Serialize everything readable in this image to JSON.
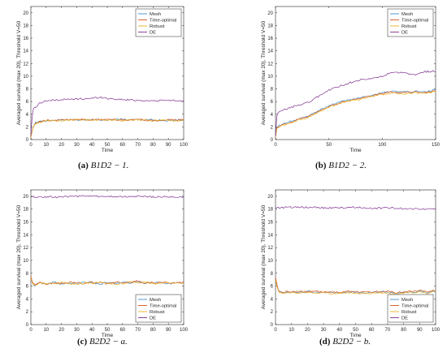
{
  "chart_data": [
    {
      "type": "line",
      "caption": {
        "letter": "(a)",
        "math": "B1D2 − 1."
      },
      "xlabel": "Time",
      "ylabel": "Averaged survival (max 20), Threshold V=50",
      "xlim": [
        0,
        100
      ],
      "ylim": [
        0,
        21
      ],
      "xticks": [
        0,
        10,
        20,
        30,
        40,
        50,
        60,
        70,
        80,
        90,
        100
      ],
      "yticks": [
        0,
        2,
        4,
        6,
        8,
        10,
        12,
        14,
        16,
        18,
        20
      ],
      "legend_position": "top-right",
      "series": [
        {
          "name": "Mesh",
          "color": "#3b8fd0",
          "x": [
            0,
            1,
            2,
            3,
            5,
            8,
            10,
            15,
            20,
            30,
            40,
            50,
            60,
            70,
            80,
            90,
            100
          ],
          "y": [
            0.3,
            1.6,
            2.4,
            2.7,
            2.8,
            2.9,
            3.0,
            3.0,
            3.1,
            3.1,
            3.2,
            3.1,
            3.2,
            3.1,
            3.1,
            3.0,
            3.1
          ]
        },
        {
          "name": "Time-optimal",
          "color": "#d95319",
          "x": [
            0,
            1,
            2,
            3,
            5,
            8,
            10,
            15,
            20,
            30,
            40,
            50,
            60,
            70,
            80,
            90,
            100
          ],
          "y": [
            0.3,
            1.5,
            2.3,
            2.6,
            2.8,
            2.9,
            3.0,
            3.0,
            3.1,
            3.2,
            3.1,
            3.2,
            3.1,
            3.2,
            3.0,
            3.1,
            3.1
          ]
        },
        {
          "name": "Robust",
          "color": "#edb120",
          "x": [
            0,
            1,
            2,
            3,
            5,
            8,
            10,
            15,
            20,
            30,
            40,
            50,
            60,
            70,
            80,
            90,
            100
          ],
          "y": [
            0.3,
            1.5,
            2.2,
            2.5,
            2.7,
            2.8,
            2.9,
            3.0,
            3.0,
            3.1,
            3.1,
            3.1,
            3.0,
            3.1,
            3.0,
            3.0,
            3.0
          ]
        },
        {
          "name": "DE",
          "color": "#7e2f8e",
          "x": [
            0,
            1,
            2,
            4,
            6,
            8,
            10,
            15,
            20,
            30,
            40,
            45,
            50,
            60,
            70,
            80,
            90,
            100
          ],
          "y": [
            0.6,
            4.3,
            5.0,
            5.3,
            5.8,
            6.0,
            6.1,
            6.2,
            6.3,
            6.4,
            6.5,
            6.7,
            6.5,
            6.3,
            6.2,
            6.1,
            6.2,
            6.1
          ]
        }
      ]
    },
    {
      "type": "line",
      "caption": {
        "letter": "(b)",
        "math": "B1D2 − 2."
      },
      "xlabel": "Time",
      "ylabel": "Averaged survival (max 20), Threshold V=50",
      "xlim": [
        0,
        150
      ],
      "ylim": [
        0,
        21
      ],
      "xticks": [
        0,
        50,
        100,
        150
      ],
      "yticks": [
        0,
        2,
        4,
        6,
        8,
        10,
        12,
        14,
        16,
        18,
        20
      ],
      "legend_position": "top-right",
      "series": [
        {
          "name": "Mesh",
          "color": "#3b8fd0",
          "x": [
            0,
            1,
            3,
            10,
            20,
            30,
            40,
            50,
            60,
            70,
            80,
            90,
            100,
            110,
            120,
            130,
            140,
            150
          ],
          "y": [
            0.4,
            1.8,
            2.2,
            2.6,
            3.2,
            3.7,
            4.5,
            5.3,
            5.9,
            6.3,
            6.6,
            7.0,
            7.4,
            7.6,
            7.5,
            7.6,
            7.5,
            7.9
          ]
        },
        {
          "name": "Time-optimal",
          "color": "#d95319",
          "x": [
            0,
            1,
            3,
            10,
            20,
            30,
            40,
            50,
            60,
            70,
            80,
            90,
            100,
            110,
            120,
            130,
            140,
            150
          ],
          "y": [
            0.4,
            1.7,
            2.1,
            2.5,
            3.1,
            3.6,
            4.4,
            5.2,
            5.8,
            6.2,
            6.5,
            6.9,
            7.3,
            7.5,
            7.4,
            7.5,
            7.4,
            7.7
          ]
        },
        {
          "name": "Robust",
          "color": "#edb120",
          "x": [
            0,
            1,
            3,
            10,
            20,
            30,
            40,
            50,
            60,
            70,
            80,
            90,
            100,
            110,
            120,
            130,
            140,
            150
          ],
          "y": [
            0.4,
            1.7,
            2.0,
            2.4,
            3.0,
            3.5,
            4.3,
            5.1,
            5.7,
            6.1,
            6.4,
            6.8,
            7.1,
            7.3,
            7.2,
            7.4,
            7.3,
            7.6
          ]
        },
        {
          "name": "DE",
          "color": "#7e2f8e",
          "x": [
            0,
            1,
            3,
            10,
            20,
            30,
            40,
            50,
            60,
            70,
            80,
            90,
            100,
            110,
            120,
            130,
            140,
            150
          ],
          "y": [
            0.5,
            3.6,
            4.3,
            4.8,
            5.4,
            5.8,
            6.8,
            7.8,
            8.4,
            9.0,
            9.4,
            9.6,
            10.0,
            10.6,
            10.5,
            10.2,
            10.7,
            10.8
          ]
        }
      ]
    },
    {
      "type": "line",
      "caption": {
        "letter": "(c)",
        "math": "B2D2 − a."
      },
      "xlabel": "Time",
      "ylabel": "Averaged survival (max 20), Threshold V=50",
      "xlim": [
        0,
        100
      ],
      "ylim": [
        0,
        21
      ],
      "xticks": [
        0,
        10,
        20,
        30,
        40,
        50,
        60,
        70,
        80,
        90,
        100
      ],
      "yticks": [
        0,
        2,
        4,
        6,
        8,
        10,
        12,
        14,
        16,
        18,
        20
      ],
      "legend_position": "bottom-right",
      "series": [
        {
          "name": "Mesh",
          "color": "#3b8fd0",
          "x": [
            0,
            1,
            2,
            4,
            6,
            10,
            15,
            20,
            25,
            30,
            35,
            40,
            45,
            50,
            55,
            60,
            65,
            70,
            75,
            80,
            85,
            90,
            95,
            100
          ],
          "y": [
            7.4,
            6.4,
            6.0,
            6.3,
            6.5,
            6.2,
            6.6,
            6.3,
            6.5,
            6.4,
            6.6,
            6.5,
            6.3,
            6.6,
            6.4,
            6.6,
            6.5,
            6.7,
            6.4,
            6.5,
            6.6,
            6.4,
            6.5,
            6.5
          ]
        },
        {
          "name": "Time-optimal",
          "color": "#d95319",
          "x": [
            0,
            1,
            2,
            4,
            6,
            10,
            15,
            20,
            25,
            30,
            35,
            40,
            45,
            50,
            55,
            60,
            65,
            70,
            75,
            80,
            85,
            90,
            95,
            100
          ],
          "y": [
            7.6,
            6.6,
            6.2,
            6.4,
            6.6,
            6.3,
            6.5,
            6.4,
            6.6,
            6.5,
            6.4,
            6.6,
            6.5,
            6.4,
            6.6,
            6.5,
            6.6,
            6.8,
            6.5,
            6.6,
            6.5,
            6.6,
            6.4,
            6.6
          ]
        },
        {
          "name": "Robust",
          "color": "#edb120",
          "x": [
            0,
            1,
            2,
            4,
            6,
            10,
            15,
            20,
            25,
            30,
            35,
            40,
            45,
            50,
            55,
            60,
            65,
            70,
            75,
            80,
            85,
            90,
            95,
            100
          ],
          "y": [
            7.3,
            6.5,
            6.1,
            6.2,
            6.4,
            6.4,
            6.4,
            6.5,
            6.4,
            6.3,
            6.5,
            6.4,
            6.6,
            6.5,
            6.3,
            6.4,
            6.7,
            6.5,
            6.6,
            6.4,
            6.4,
            6.5,
            6.6,
            6.4
          ]
        },
        {
          "name": "DE",
          "color": "#7e2f8e",
          "x": [
            0,
            10,
            20,
            30,
            40,
            50,
            60,
            70,
            80,
            90,
            100
          ],
          "y": [
            19.9,
            19.9,
            19.9,
            20.0,
            20.0,
            20.0,
            19.9,
            20.0,
            19.9,
            19.9,
            19.9
          ]
        }
      ]
    },
    {
      "type": "line",
      "caption": {
        "letter": "(d)",
        "math": "B2D2 − b."
      },
      "xlabel": "Time",
      "ylabel": "Averaged survival (max 20), Threshold V=50",
      "xlim": [
        0,
        100
      ],
      "ylim": [
        0,
        21
      ],
      "xticks": [
        0,
        10,
        20,
        30,
        40,
        50,
        60,
        70,
        80,
        90,
        100
      ],
      "yticks": [
        0,
        2,
        4,
        6,
        8,
        10,
        12,
        14,
        16,
        18,
        20
      ],
      "legend_position": "bottom-right",
      "series": [
        {
          "name": "Mesh",
          "color": "#3b8fd0",
          "x": [
            0,
            1,
            2,
            4,
            6,
            10,
            15,
            20,
            25,
            30,
            35,
            40,
            45,
            50,
            55,
            60,
            65,
            70,
            75,
            80,
            85,
            90,
            95,
            100
          ],
          "y": [
            7.2,
            6.0,
            5.2,
            4.9,
            5.0,
            5.1,
            5.0,
            5.2,
            5.0,
            5.1,
            5.0,
            4.9,
            5.1,
            5.0,
            4.9,
            5.0,
            5.2,
            5.0,
            4.9,
            5.0,
            5.1,
            5.2,
            5.0,
            5.3
          ]
        },
        {
          "name": "Time-optimal",
          "color": "#d95319",
          "x": [
            0,
            1,
            2,
            4,
            6,
            10,
            15,
            20,
            25,
            30,
            35,
            40,
            45,
            50,
            55,
            60,
            65,
            70,
            75,
            80,
            85,
            90,
            95,
            100
          ],
          "y": [
            7.4,
            6.2,
            5.3,
            5.0,
            5.1,
            5.2,
            5.1,
            5.1,
            5.2,
            5.0,
            5.1,
            5.0,
            5.2,
            5.1,
            5.0,
            5.1,
            5.1,
            5.2,
            5.0,
            5.1,
            5.2,
            5.3,
            5.1,
            5.4
          ]
        },
        {
          "name": "Robust",
          "color": "#edb120",
          "x": [
            0,
            1,
            2,
            4,
            6,
            10,
            15,
            20,
            25,
            30,
            35,
            40,
            45,
            50,
            55,
            60,
            65,
            70,
            75,
            80,
            85,
            90,
            95,
            100
          ],
          "y": [
            7.0,
            5.8,
            5.1,
            4.8,
            4.9,
            5.0,
            4.9,
            5.0,
            4.9,
            5.0,
            4.8,
            4.9,
            5.0,
            4.9,
            4.8,
            4.9,
            5.0,
            4.9,
            4.8,
            4.9,
            5.0,
            5.1,
            4.9,
            5.2
          ]
        },
        {
          "name": "DE",
          "color": "#7e2f8e",
          "x": [
            0,
            10,
            20,
            30,
            40,
            50,
            60,
            70,
            80,
            90,
            100
          ],
          "y": [
            18.2,
            18.3,
            18.3,
            18.2,
            18.2,
            18.3,
            18.1,
            18.2,
            18.1,
            18.0,
            18.1
          ]
        }
      ]
    }
  ]
}
